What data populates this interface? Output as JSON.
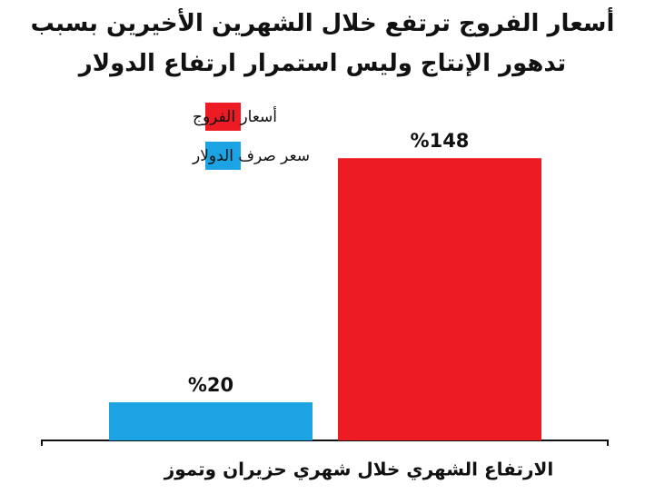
{
  "chart_data": {
    "type": "bar",
    "title": "أسعار الفروج ترتفع خلال الشهرين الأخيرين بسبب تدهور الإنتاج وليس استمرار ارتفاع الدولار",
    "categories": [
      "الارتفاع الشهري خلال شهري  حزيران وتموز"
    ],
    "series": [
      {
        "name": "أسعار الفروج",
        "color": "#ed1c24",
        "values": [
          148
        ],
        "value_labels": [
          "%148"
        ]
      },
      {
        "name": "سعر صرف الدولار",
        "color": "#1ba3e3",
        "values": [
          20
        ],
        "value_labels": [
          "%20"
        ]
      }
    ],
    "ylim": [
      0,
      160
    ]
  }
}
